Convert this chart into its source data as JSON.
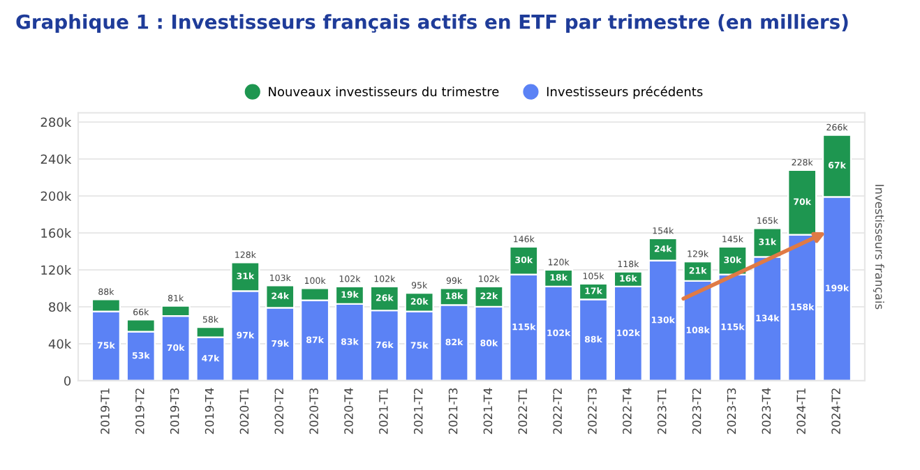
{
  "chart_data": {
    "type": "bar",
    "stacked": true,
    "title": "Graphique 1 : Investisseurs français actifs en ETF par trimestre (en milliers)",
    "categories": [
      "2019-T1",
      "2019-T2",
      "2019-T3",
      "2019-T4",
      "2020-T1",
      "2020-T2",
      "2020-T3",
      "2020-T4",
      "2021-T1",
      "2021-T2",
      "2021-T3",
      "2021-T4",
      "2022-T1",
      "2022-T2",
      "2022-T3",
      "2022-T4",
      "2023-T1",
      "2023-T2",
      "2023-T3",
      "2023-T4",
      "2024-T1",
      "2024-T2"
    ],
    "series": [
      {
        "name": "Investisseurs précédents",
        "color": "#5b82f5",
        "values": [
          75,
          53,
          70,
          47,
          97,
          79,
          87,
          83,
          76,
          75,
          82,
          80,
          115,
          102,
          88,
          102,
          130,
          108,
          115,
          134,
          158,
          199
        ],
        "value_labels": [
          "75k",
          "53k",
          "70k",
          "47k",
          "97k",
          "79k",
          "87k",
          "83k",
          "76k",
          "75k",
          "82k",
          "80k",
          "115k",
          "102k",
          "88k",
          "102k",
          "130k",
          "108k",
          "115k",
          "134k",
          "158k",
          "199k"
        ]
      },
      {
        "name": "Nouveaux investisseurs du trimestre",
        "color": "#1e9650",
        "values": [
          13,
          13,
          11,
          11,
          31,
          24,
          13,
          19,
          26,
          20,
          18,
          22,
          30,
          18,
          17,
          16,
          24,
          21,
          30,
          31,
          70,
          67
        ],
        "value_labels": [
          null,
          null,
          null,
          null,
          "31k",
          "24k",
          null,
          "19k",
          "26k",
          "20k",
          "18k",
          "22k",
          "30k",
          "18k",
          "17k",
          "16k",
          "24k",
          "21k",
          "30k",
          "31k",
          "70k",
          "67k"
        ]
      }
    ],
    "totals": [
      "88k",
      "66k",
      "81k",
      "58k",
      "128k",
      "103k",
      "100k",
      "102k",
      "102k",
      "95k",
      "99k",
      "102k",
      "146k",
      "120k",
      "105k",
      "118k",
      "154k",
      "129k",
      "145k",
      "165k",
      "228k",
      "266k"
    ],
    "ylim": [
      0,
      290
    ],
    "yticks": [
      {
        "value": 0,
        "label": "0"
      },
      {
        "value": 40,
        "label": "40k"
      },
      {
        "value": 80,
        "label": "80k"
      },
      {
        "value": 120,
        "label": "120k"
      },
      {
        "value": 160,
        "label": "160k"
      },
      {
        "value": 200,
        "label": "200k"
      },
      {
        "value": 240,
        "label": "240k"
      },
      {
        "value": 280,
        "label": "280k"
      }
    ],
    "grid": "y",
    "legend": "top",
    "annotations": [
      "Investisseurs français"
    ]
  }
}
